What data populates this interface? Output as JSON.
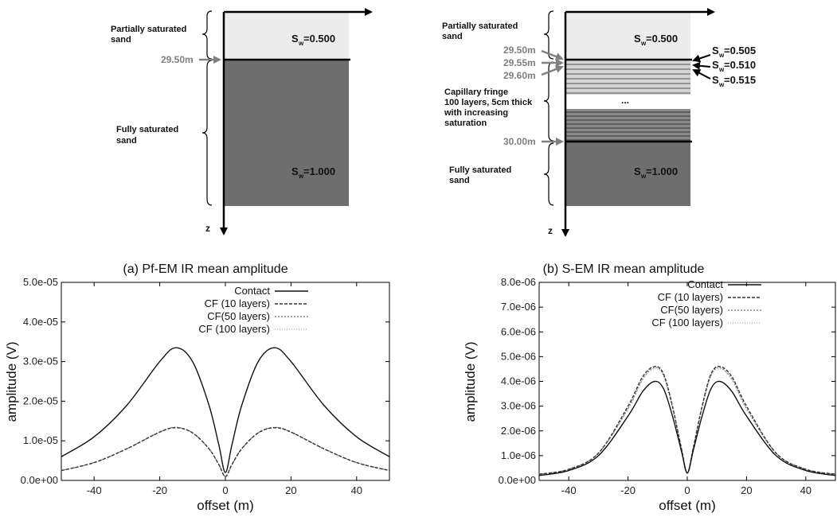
{
  "diagram_a": {
    "top_layer_label": "Partially saturated sand",
    "top_layer_label_lines": [
      "Partially saturated",
      "sand"
    ],
    "top_sw_label": "S",
    "top_sw_sub": "w",
    "top_sw_value": "=0.500",
    "bottom_layer_label_lines": [
      "Fully saturated",
      "sand"
    ],
    "bottom_sw_label": "S",
    "bottom_sw_sub": "w",
    "bottom_sw_value": "=1.000",
    "interface_depth": "29.50m",
    "z_axis_label": "z"
  },
  "diagram_b": {
    "top_layer_label_lines": [
      "Partially saturated",
      "sand"
    ],
    "top_sw_label": "S",
    "top_sw_sub": "w",
    "top_sw_value": "=0.500",
    "depths": [
      "29.50m",
      "29.55m",
      "29.60m",
      "30.00m"
    ],
    "fringe_label_lines": [
      "Capillary fringe",
      "100 layers, 5cm thick",
      "with increasing",
      "saturation"
    ],
    "ellipsis": "...",
    "layer_sw": [
      {
        "s": "S",
        "sub": "w",
        "value": "=0.505"
      },
      {
        "s": "S",
        "sub": "w",
        "value": "=0.510"
      },
      {
        "s": "S",
        "sub": "w",
        "value": "=0.515"
      }
    ],
    "bottom_layer_label_lines": [
      "Fully saturated",
      "sand"
    ],
    "bottom_sw_label": "S",
    "bottom_sw_sub": "w",
    "bottom_sw_value": "=1.000",
    "z_axis_label": "z"
  },
  "chart_data": [
    {
      "type": "line",
      "title": "(a) Pf-EM IR mean amplitude",
      "xlabel": "offset (m)",
      "ylabel": "amplitude (V)",
      "xlim": [
        -50,
        50
      ],
      "ylim": [
        0,
        5e-05
      ],
      "xticks": [
        -40,
        -20,
        0,
        20,
        40
      ],
      "xtick_labels": [
        "-40",
        "-20",
        "0",
        "20",
        "40"
      ],
      "yticks": [
        0,
        1e-05,
        2e-05,
        3e-05,
        4e-05,
        5e-05
      ],
      "ytick_labels": [
        "0.0e+00",
        "1.0e-05",
        "2.0e-05",
        "3.0e-05",
        "4.0e-05",
        "5.0e-05"
      ],
      "legend_position": "top-right",
      "x": [
        -50,
        -40,
        -30,
        -20,
        -15,
        -10,
        -5,
        -2,
        0,
        2,
        5,
        10,
        15,
        20,
        30,
        40,
        50
      ],
      "series": [
        {
          "name": "Contact",
          "color": "#111111",
          "dash": "solid",
          "values": [
            6e-06,
            1.1e-05,
            1.9e-05,
            3e-05,
            3.35e-05,
            3e-05,
            1.9e-05,
            9e-06,
            2e-06,
            9e-06,
            1.9e-05,
            3e-05,
            3.35e-05,
            3e-05,
            1.9e-05,
            1.1e-05,
            6e-06
          ]
        },
        {
          "name": "CF (10 layers)",
          "color": "#333333",
          "dash": "4,2",
          "values": [
            2.5e-06,
            4.5e-06,
            8e-06,
            1.22e-05,
            1.33e-05,
            1.2e-05,
            8e-06,
            4e-06,
            1e-06,
            4e-06,
            8e-06,
            1.2e-05,
            1.33e-05,
            1.22e-05,
            8e-06,
            4.5e-06,
            2.5e-06
          ]
        },
        {
          "name": "CF(50 layers)",
          "color": "#888888",
          "dash": "2,2",
          "values": [
            2.5e-06,
            4.5e-06,
            8e-06,
            1.22e-05,
            1.34e-05,
            1.2e-05,
            8e-06,
            4e-06,
            1e-06,
            4e-06,
            8e-06,
            1.2e-05,
            1.34e-05,
            1.22e-05,
            8e-06,
            4.5e-06,
            2.5e-06
          ]
        },
        {
          "name": "CF (100 layers)",
          "color": "#bbbbbb",
          "dash": "1,2",
          "values": [
            2.5e-06,
            4.5e-06,
            8e-06,
            1.22e-05,
            1.34e-05,
            1.2e-05,
            8e-06,
            4e-06,
            1e-06,
            4e-06,
            8e-06,
            1.2e-05,
            1.34e-05,
            1.22e-05,
            8e-06,
            4.5e-06,
            2.5e-06
          ]
        }
      ]
    },
    {
      "type": "line",
      "title": "(b) S-EM IR mean amplitude",
      "xlabel": "offset (m)",
      "ylabel": "amplitude (V)",
      "xlim": [
        -50,
        50
      ],
      "ylim": [
        0,
        8e-06
      ],
      "xticks": [
        -40,
        -20,
        0,
        20,
        40
      ],
      "xtick_labels": [
        "-40",
        "-20",
        "0",
        "20",
        "40"
      ],
      "yticks": [
        0,
        1e-06,
        2e-06,
        3e-06,
        4e-06,
        5e-06,
        6e-06,
        7e-06,
        8e-06
      ],
      "ytick_labels": [
        "0.0e+00",
        "1.0e-06",
        "2.0e-06",
        "3.0e-06",
        "4.0e-06",
        "5.0e-06",
        "6.0e-06",
        "7.0e-06",
        "8.0e-06"
      ],
      "legend_position": "top-right",
      "x": [
        -50,
        -40,
        -30,
        -20,
        -15,
        -11,
        -8,
        -5,
        -2,
        0,
        2,
        5,
        8,
        11,
        15,
        20,
        30,
        40,
        50
      ],
      "series": [
        {
          "name": "Contact",
          "color": "#111111",
          "dash": "solid",
          "values": [
            2e-07,
            4e-07,
            1e-06,
            2.6e-06,
            3.6e-06,
            4e-06,
            3.7e-06,
            2.6e-06,
            1.2e-06,
            3e-07,
            1.2e-06,
            2.6e-06,
            3.7e-06,
            4e-06,
            3.6e-06,
            2.6e-06,
            1e-06,
            4e-07,
            2e-07
          ]
        },
        {
          "name": "CF (10 layers)",
          "color": "#333333",
          "dash": "4,2",
          "values": [
            2.5e-07,
            4.5e-07,
            1.1e-06,
            3e-06,
            4.2e-06,
            4.6e-06,
            4.3e-06,
            3e-06,
            1.3e-06,
            3e-07,
            1.3e-06,
            3e-06,
            4.3e-06,
            4.6e-06,
            4.2e-06,
            3e-06,
            1.1e-06,
            4.5e-07,
            2.5e-07
          ]
        },
        {
          "name": "CF(50 layers)",
          "color": "#888888",
          "dash": "2,2",
          "values": [
            2.5e-07,
            4.5e-07,
            1.1e-06,
            2.9e-06,
            4.1e-06,
            4.55e-06,
            4.25e-06,
            2.95e-06,
            1.3e-06,
            3e-07,
            1.3e-06,
            2.95e-06,
            4.25e-06,
            4.55e-06,
            4.1e-06,
            2.9e-06,
            1.1e-06,
            4.5e-07,
            2.5e-07
          ]
        },
        {
          "name": "CF (100 layers)",
          "color": "#bbbbbb",
          "dash": "1,2",
          "values": [
            2.5e-07,
            4.5e-07,
            1.1e-06,
            2.9e-06,
            4.1e-06,
            4.5e-06,
            4.2e-06,
            2.95e-06,
            1.3e-06,
            3e-07,
            1.3e-06,
            2.95e-06,
            4.2e-06,
            4.5e-06,
            4.1e-06,
            2.9e-06,
            1.1e-06,
            4.5e-07,
            2.5e-07
          ]
        }
      ]
    }
  ]
}
